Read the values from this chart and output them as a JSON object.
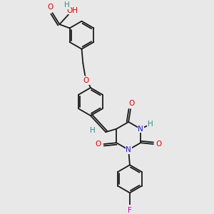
{
  "bg": "#e8e8e8",
  "bc": "#1a1a1a",
  "lw": 1.3,
  "sep": 0.07,
  "colors": {
    "O": "#dd0000",
    "N": "#1a1acc",
    "F": "#bb00bb",
    "H": "#3a8888",
    "C": "#1a1a1a"
  },
  "fs": 7.5,
  "ring_r": 0.55,
  "xlim": [
    -1.5,
    4.5
  ],
  "ylim": [
    -4.5,
    3.5
  ]
}
